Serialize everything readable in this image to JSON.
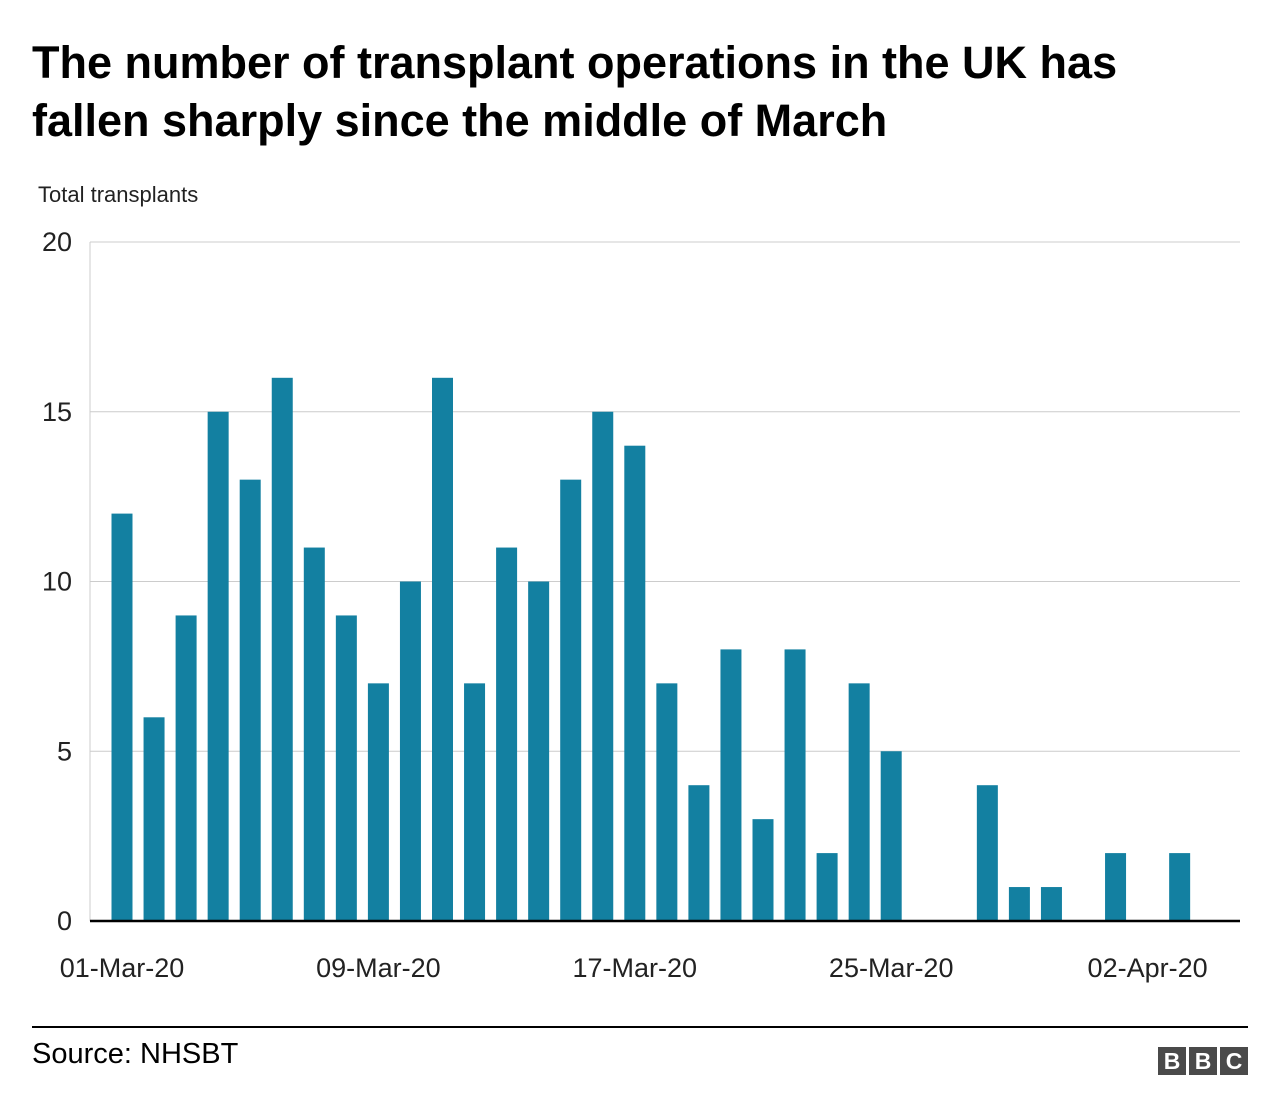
{
  "title_lines": [
    "The number of transplant operations in the UK has",
    "fallen sharply since the middle of March"
  ],
  "source": "Source: NHSBT",
  "logo": {
    "letters": [
      "B",
      "B",
      "C"
    ]
  },
  "colors": {
    "bar": "#1380A1",
    "grid": "#cccccc",
    "axis": "#000000",
    "text": "#222222"
  },
  "chart_data": {
    "type": "bar",
    "title": "The number of transplant operations in the UK has fallen sharply since the middle of March",
    "ylabel": "Total transplants",
    "xlabel": "",
    "ylim": [
      0,
      20
    ],
    "yticks": [
      0,
      5,
      10,
      15,
      20
    ],
    "grid": true,
    "xtick_labels": [
      {
        "category": "01-Mar-20",
        "label": "01-Mar-20"
      },
      {
        "category": "09-Mar-20",
        "label": "09-Mar-20"
      },
      {
        "category": "17-Mar-20",
        "label": "17-Mar-20"
      },
      {
        "category": "25-Mar-20",
        "label": "25-Mar-20"
      },
      {
        "category": "02-Apr-20",
        "label": "02-Apr-20"
      }
    ],
    "categories": [
      "01-Mar-20",
      "02-Mar-20",
      "03-Mar-20",
      "04-Mar-20",
      "05-Mar-20",
      "06-Mar-20",
      "07-Mar-20",
      "08-Mar-20",
      "09-Mar-20",
      "10-Mar-20",
      "11-Mar-20",
      "12-Mar-20",
      "13-Mar-20",
      "14-Mar-20",
      "15-Mar-20",
      "16-Mar-20",
      "17-Mar-20",
      "18-Mar-20",
      "19-Mar-20",
      "20-Mar-20",
      "21-Mar-20",
      "22-Mar-20",
      "23-Mar-20",
      "24-Mar-20",
      "25-Mar-20",
      "26-Mar-20",
      "27-Mar-20",
      "28-Mar-20",
      "29-Mar-20",
      "30-Mar-20",
      "31-Mar-20",
      "01-Apr-20",
      "02-Apr-20",
      "03-Apr-20"
    ],
    "values": [
      12,
      6,
      9,
      15,
      13,
      16,
      11,
      9,
      7,
      10,
      16,
      7,
      11,
      10,
      13,
      15,
      14,
      7,
      4,
      8,
      3,
      8,
      2,
      7,
      5,
      0,
      0,
      4,
      1,
      1,
      0,
      2,
      0,
      2
    ]
  }
}
